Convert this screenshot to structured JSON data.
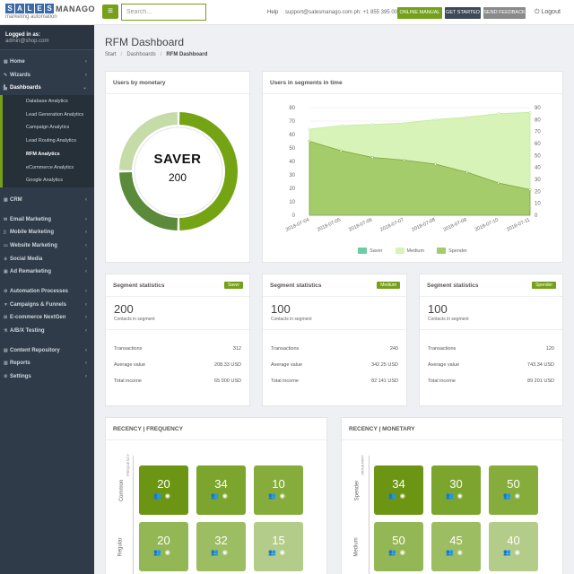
{
  "brand": {
    "letters": [
      "S",
      "A",
      "L",
      "E",
      "S"
    ],
    "word": "MANAGO",
    "tagline": "marketing automation"
  },
  "topbar": {
    "search_placeholder": "Search...",
    "help": "Help",
    "support": "support@salesmanago.com ph: +1 855 395 0027",
    "buttons": [
      "ONLINE MANUAL",
      "GET STARTED",
      "SEND FEEDBACK"
    ],
    "logout": "Logout"
  },
  "sidebar": {
    "logged_label": "Logged in as:",
    "logged_email": "admin@shop.com",
    "items": [
      {
        "label": "Home",
        "icon": "grid-icon"
      },
      {
        "label": "Wizards",
        "icon": "wand-icon"
      },
      {
        "label": "Dashboards",
        "icon": "chart-icon"
      },
      {
        "label": "CRM",
        "icon": "grid-icon"
      },
      {
        "label": "Email Marketing",
        "icon": "envelope-icon"
      },
      {
        "label": "Mobile Marketing",
        "icon": "phone-icon"
      },
      {
        "label": "Website Marketing",
        "icon": "monitor-icon"
      },
      {
        "label": "Social Media",
        "icon": "share-icon"
      },
      {
        "label": "Ad Remarketing",
        "icon": "ad-icon"
      },
      {
        "label": "Automation Processes",
        "icon": "gear-icon"
      },
      {
        "label": "Campaigns & Funnels",
        "icon": "funnel-icon"
      },
      {
        "label": "E-commerce NextGen",
        "icon": "cart-icon"
      },
      {
        "label": "A/B/X Testing",
        "icon": "flask-icon"
      },
      {
        "label": "Content Repository",
        "icon": "folder-icon"
      },
      {
        "label": "Reports",
        "icon": "report-icon"
      },
      {
        "label": "Settings",
        "icon": "gear-icon"
      }
    ],
    "sub_items": [
      "Database Analytics",
      "Lead Generation Analytics",
      "Campaign Analytics",
      "Lead Routing Analytics",
      "RFM Analytics",
      "eCommerce Analytics",
      "Google Analytics"
    ]
  },
  "page": {
    "title": "RFM Dashboard",
    "breadcrumb": [
      "Start",
      "Dashboards",
      "RFM Dashboard"
    ]
  },
  "monetary": {
    "title": "Users by monetary",
    "center_label": "SAVER",
    "center_value": "200",
    "slices": [
      {
        "name": "Saver",
        "value": 200,
        "color": "#74a414"
      },
      {
        "name": "Medium",
        "value": 100,
        "color": "#5b8b3a"
      },
      {
        "name": "Spender",
        "value": 100,
        "color": "#c5dba8"
      }
    ]
  },
  "segments_time": {
    "title": "Users in segments in time",
    "legend": [
      {
        "name": "Saver",
        "color": "#6ccda3"
      },
      {
        "name": "Medium",
        "color": "#d7f3b8"
      },
      {
        "name": "Spender",
        "color": "#a4cc6a"
      }
    ]
  },
  "chart_data": {
    "type": "area",
    "x": [
      "2018-07-04",
      "2018-07-05",
      "2018-07-06",
      "2018-07-07",
      "2018-07-08",
      "2018-07-09",
      "2018-07-10",
      "2018-07-11"
    ],
    "ylim_left": [
      0,
      80
    ],
    "ylim_right": [
      0,
      90
    ],
    "yticks_left": [
      0,
      10,
      20,
      30,
      40,
      50,
      60,
      70,
      80
    ],
    "yticks_right": [
      0,
      10,
      20,
      30,
      40,
      50,
      60,
      70,
      80,
      90
    ],
    "series": [
      {
        "name": "Medium",
        "axis": "right",
        "values": [
          72,
          75,
          76,
          77,
          80,
          82,
          85,
          86
        ]
      },
      {
        "name": "Spender",
        "axis": "left",
        "values": [
          55,
          48,
          43,
          41,
          38,
          32,
          24,
          19
        ]
      }
    ]
  },
  "stats": [
    {
      "title": "Segment statistics",
      "badge": "Saver",
      "count": "200",
      "sub": "Contacts in segment",
      "rows": [
        [
          "Transactions",
          "312"
        ],
        [
          "Average value",
          "208.33 USD"
        ],
        [
          "Total income",
          "65 000 USD"
        ]
      ]
    },
    {
      "title": "Segment statistics",
      "badge": "Medium",
      "count": "100",
      "sub": "Contacts in segment",
      "rows": [
        [
          "Transactions",
          "240"
        ],
        [
          "Average value",
          "342.25 USD"
        ],
        [
          "Total income",
          "82 141 USD"
        ]
      ]
    },
    {
      "title": "Segment statistics",
      "badge": "Spender",
      "count": "100",
      "sub": "Contacts in segment",
      "rows": [
        [
          "Transactions",
          "120"
        ],
        [
          "Average value",
          "743.34 USD"
        ],
        [
          "Total income",
          "89 201 USD"
        ]
      ]
    }
  ],
  "rf": {
    "title": "RECENCY | FREQUENCY",
    "axis_tag": "FREQUENCY",
    "rows": [
      "Common",
      "Regular"
    ],
    "tiles": [
      [
        "20",
        "34",
        "10"
      ],
      [
        "20",
        "32",
        "15"
      ]
    ]
  },
  "rm": {
    "title": "RECENCY | MONETARY",
    "axis_tag": "MONETARY",
    "rows": [
      "Spender",
      "Medium"
    ],
    "tiles": [
      [
        "34",
        "30",
        "50"
      ],
      [
        "50",
        "45",
        "40"
      ]
    ]
  },
  "colors": {
    "accent": "#75a01b",
    "sidebar": "#2f3b48"
  }
}
